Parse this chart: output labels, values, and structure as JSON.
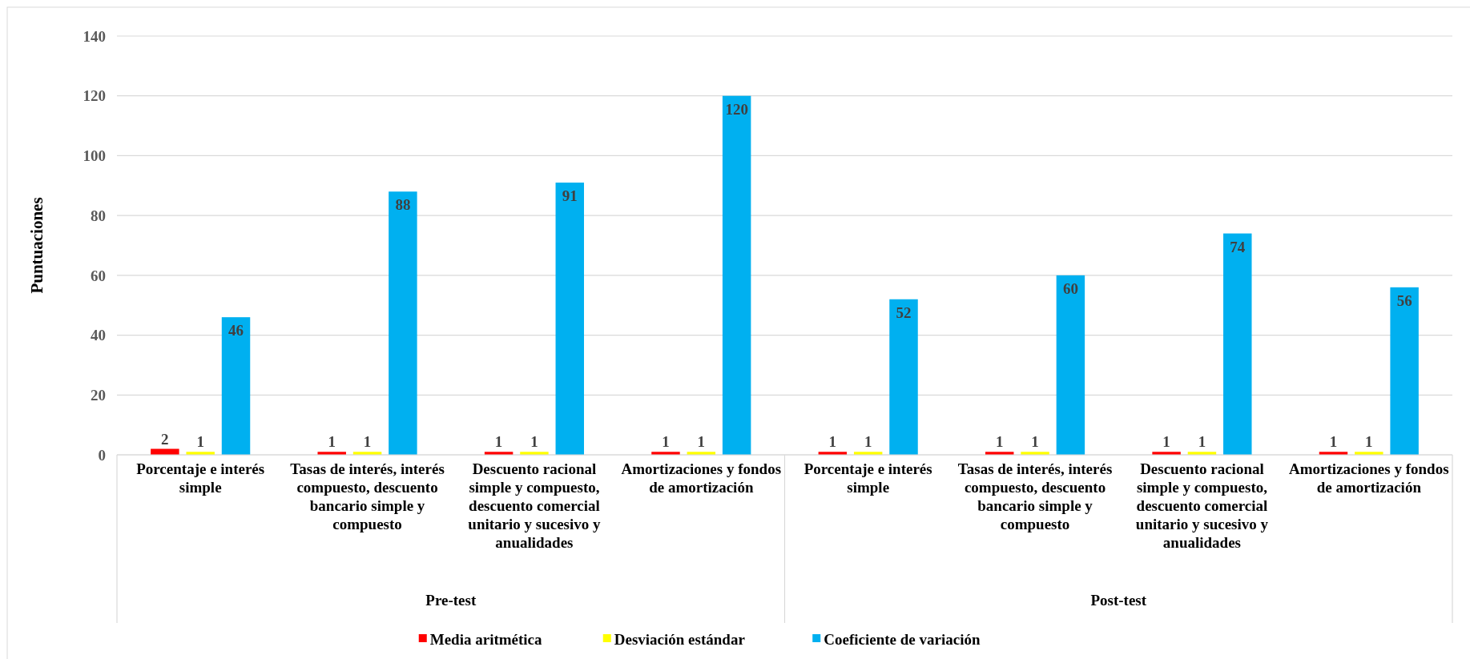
{
  "chart_data": {
    "type": "bar",
    "ylabel": "Puntuaciones",
    "categories": [
      "Porcentaje e interés simple",
      "Tasas de interés, interés compuesto, descuento bancario simple y compuesto",
      "Descuento racional simple y compuesto, descuento comercial unitario y sucesivo y anualidades",
      "Amortizaciones y fondos de amortización",
      "Porcentaje e interés simple",
      "Tasas de interés, interés compuesto, descuento bancario simple y compuesto",
      "Descuento racional simple y compuesto, descuento comercial unitario y sucesivo y anualidades",
      "Amortizaciones y fondos de amortización"
    ],
    "series": [
      {
        "name": "Media aritmética",
        "color": "#ff0000",
        "values": [
          2,
          1,
          1,
          1,
          1,
          1,
          1,
          1
        ]
      },
      {
        "name": "Desviación estándar",
        "color": "#ffff00",
        "values": [
          1,
          1,
          1,
          1,
          1,
          1,
          1,
          1
        ]
      },
      {
        "name": "Coeficiente de variación",
        "color": "#00b0f0",
        "values": [
          46,
          88,
          91,
          120,
          52,
          60,
          74,
          56
        ]
      }
    ],
    "annotations": [
      "Pre-test",
      "Post-test"
    ],
    "ylim": [
      0,
      140
    ],
    "yticks": [
      0,
      20,
      40,
      60,
      80,
      100,
      120,
      140
    ],
    "grid": "y",
    "legend": "bottom",
    "data_labels": true
  }
}
